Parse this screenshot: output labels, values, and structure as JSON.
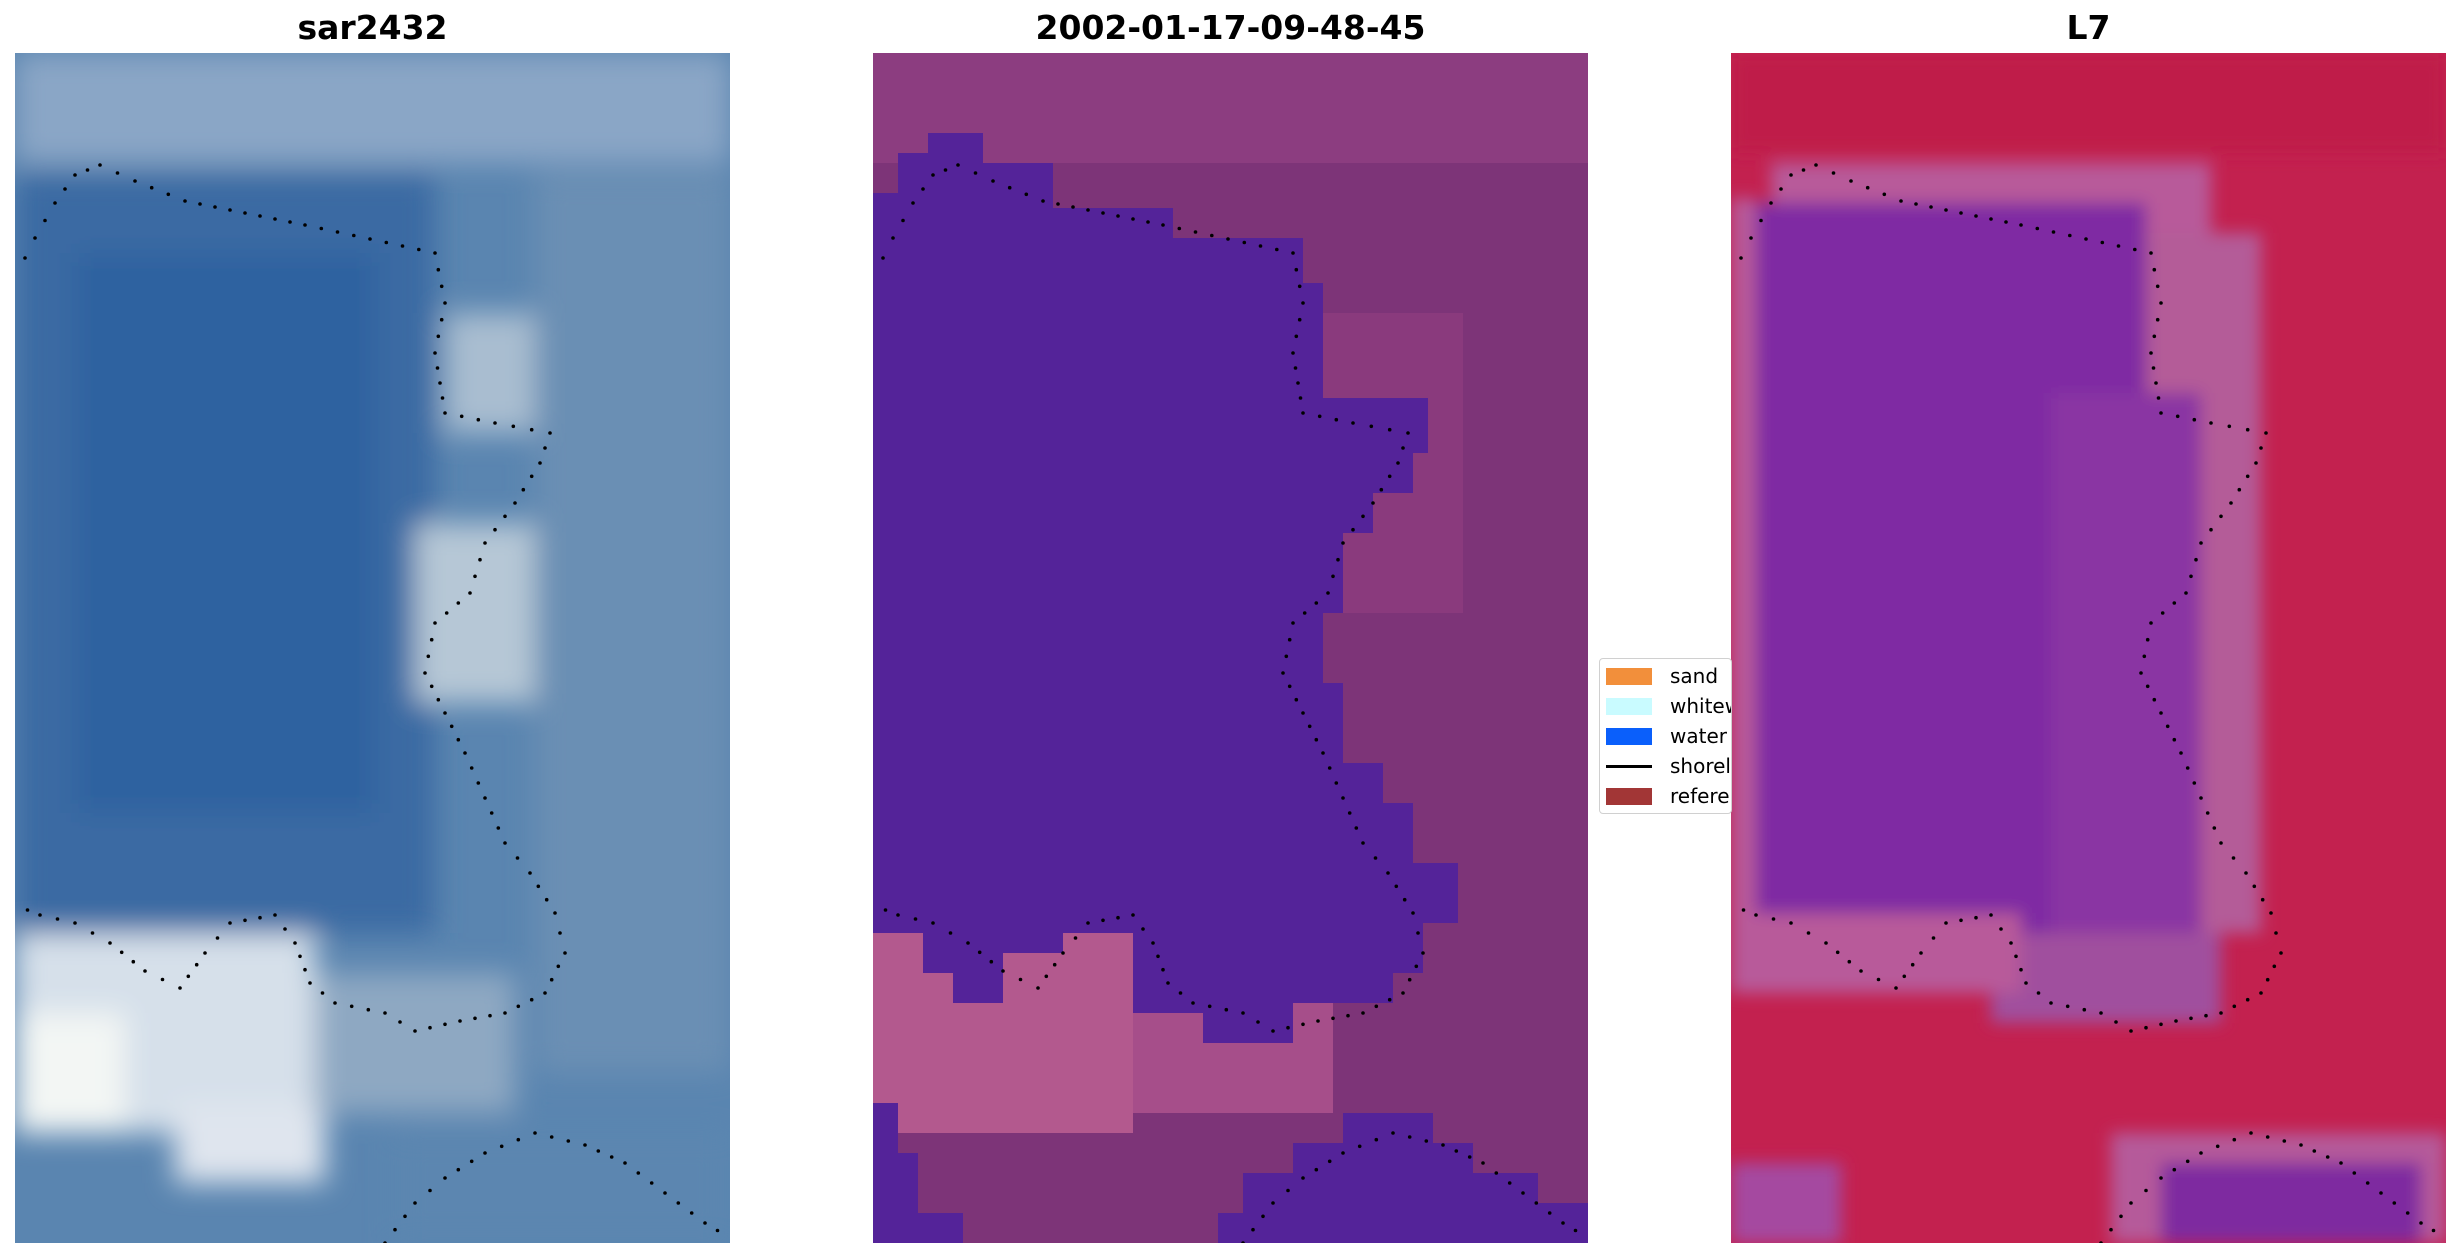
{
  "panels": [
    {
      "title": "sar2432",
      "kind": "rgb-image"
    },
    {
      "title": "2002-01-17-09-48-45",
      "kind": "classified-image"
    },
    {
      "title": "L7",
      "kind": "index-image"
    }
  ],
  "legend": {
    "items": [
      {
        "label": "sand",
        "color": "#f28f3b",
        "type": "patch"
      },
      {
        "label": "whitewater",
        "color": "#c9fbff",
        "type": "patch"
      },
      {
        "label": "water",
        "color": "#0a5ffb",
        "type": "patch"
      },
      {
        "label": "shoreline",
        "color": "#000000",
        "type": "line"
      },
      {
        "label": "reference",
        "color": "#a23636",
        "type": "patch"
      }
    ]
  }
}
